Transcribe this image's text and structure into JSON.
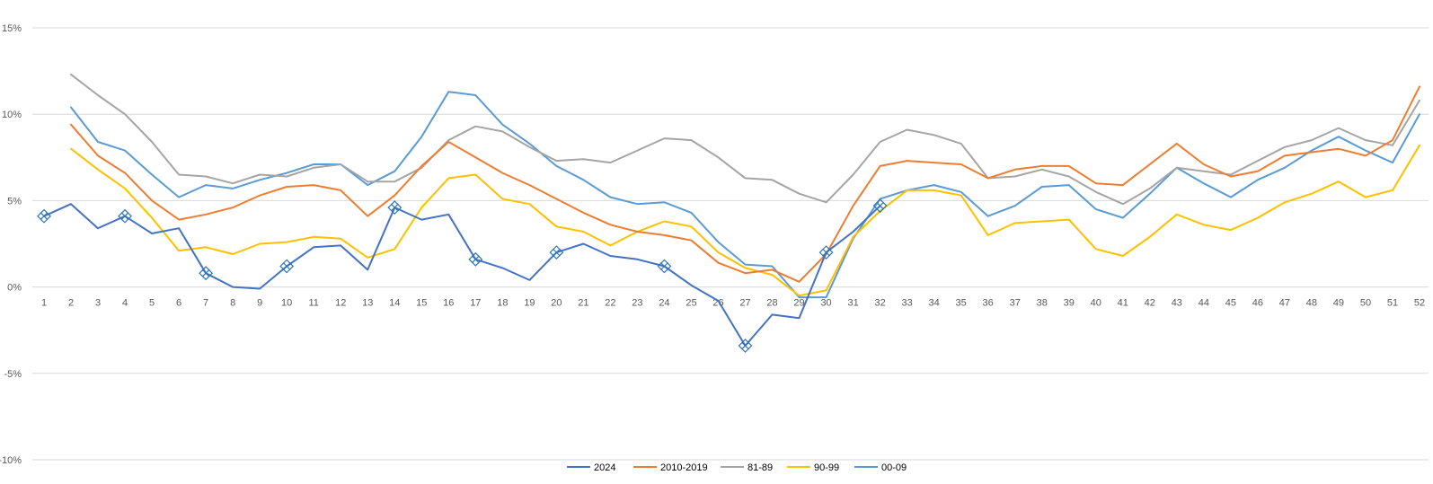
{
  "chart_data": {
    "type": "line",
    "title": "",
    "xlabel": "",
    "ylabel": "",
    "ylim": [
      -10,
      15
    ],
    "y_ticks": [
      -10,
      -5,
      0,
      5,
      10,
      15
    ],
    "y_tick_labels": [
      "-10%",
      "-5%",
      "0%",
      "5%",
      "10%",
      "15%"
    ],
    "grid": "horizontal",
    "legend_position": "bottom",
    "categories": [
      "1",
      "2",
      "3",
      "4",
      "5",
      "6",
      "7",
      "8",
      "9",
      "10",
      "11",
      "12",
      "13",
      "14",
      "15",
      "16",
      "17",
      "18",
      "19",
      "20",
      "21",
      "22",
      "23",
      "24",
      "25",
      "26",
      "27",
      "28",
      "29",
      "30",
      "31",
      "32",
      "33",
      "34",
      "35",
      "36",
      "37",
      "38",
      "39",
      "40",
      "41",
      "42",
      "43",
      "44",
      "45",
      "46",
      "47",
      "48",
      "49",
      "50",
      "51",
      "52"
    ],
    "series": [
      {
        "name": "2024",
        "color": "#4472C4",
        "values": [
          4.1,
          4.8,
          3.4,
          4.1,
          3.1,
          3.4,
          0.8,
          0.0,
          -0.1,
          1.2,
          2.3,
          2.4,
          1.0,
          4.6,
          3.9,
          4.2,
          1.6,
          1.1,
          0.4,
          2.0,
          2.5,
          1.8,
          1.6,
          1.2,
          0.1,
          -0.8,
          -3.4,
          -1.6,
          -1.8,
          2.0,
          3.2,
          4.7,
          null,
          null,
          null,
          null,
          null,
          null,
          null,
          null,
          null,
          null,
          null,
          null,
          null,
          null,
          null,
          null,
          null,
          null,
          null,
          null
        ],
        "highlighted_weeks": [
          "1",
          "4",
          "7",
          "10",
          "14",
          "17",
          "20",
          "24",
          "27",
          "30",
          "32"
        ]
      },
      {
        "name": "2010-2019",
        "color": "#ED7D31",
        "values": [
          null,
          9.4,
          7.6,
          6.6,
          5.0,
          3.9,
          4.2,
          4.6,
          5.3,
          5.8,
          5.9,
          5.6,
          4.1,
          5.3,
          7.0,
          8.4,
          7.5,
          6.6,
          5.9,
          5.1,
          4.3,
          3.6,
          3.2,
          3.0,
          2.7,
          1.4,
          0.8,
          1.0,
          0.3,
          1.9,
          4.7,
          7.0,
          7.3,
          7.2,
          7.1,
          6.3,
          6.8,
          7.0,
          7.0,
          6.0,
          5.9,
          7.1,
          8.3,
          7.1,
          6.4,
          6.7,
          7.6,
          7.8,
          8.0,
          7.6,
          8.5,
          11.6
        ]
      },
      {
        "name": "81-89",
        "color": "#A5A5A5",
        "values": [
          null,
          12.3,
          11.1,
          10.0,
          8.4,
          6.5,
          6.4,
          6.0,
          6.5,
          6.4,
          6.9,
          7.1,
          6.1,
          6.1,
          6.9,
          8.5,
          9.3,
          9.0,
          8.1,
          7.3,
          7.4,
          7.2,
          7.9,
          8.6,
          8.5,
          7.5,
          6.3,
          6.2,
          5.4,
          4.9,
          6.5,
          8.4,
          9.1,
          8.8,
          8.3,
          6.3,
          6.4,
          6.8,
          6.4,
          5.5,
          4.8,
          5.7,
          6.9,
          6.7,
          6.5,
          7.3,
          8.1,
          8.5,
          9.2,
          8.5,
          8.2,
          10.8
        ]
      },
      {
        "name": "90-99",
        "color": "#FFC000",
        "values": [
          null,
          8.0,
          6.8,
          5.7,
          4.0,
          2.1,
          2.3,
          1.9,
          2.5,
          2.6,
          2.9,
          2.8,
          1.7,
          2.2,
          4.6,
          6.3,
          6.5,
          5.1,
          4.8,
          3.5,
          3.2,
          2.4,
          3.2,
          3.8,
          3.5,
          2.0,
          1.1,
          0.7,
          -0.5,
          -0.2,
          2.9,
          4.4,
          5.6,
          5.6,
          5.3,
          3.0,
          3.7,
          3.8,
          3.9,
          2.2,
          1.8,
          2.9,
          4.2,
          3.6,
          3.3,
          4.0,
          4.9,
          5.4,
          6.1,
          5.2,
          5.6,
          8.2
        ]
      },
      {
        "name": "00-09",
        "color": "#5B9BD5",
        "values": [
          null,
          10.4,
          8.4,
          7.9,
          6.5,
          5.2,
          5.9,
          5.7,
          6.2,
          6.6,
          7.1,
          7.1,
          5.9,
          6.7,
          8.7,
          11.3,
          11.1,
          9.4,
          8.3,
          7.0,
          6.2,
          5.2,
          4.8,
          4.9,
          4.3,
          2.6,
          1.3,
          1.2,
          -0.6,
          -0.6,
          2.8,
          5.1,
          5.6,
          5.9,
          5.5,
          4.1,
          4.7,
          5.8,
          5.9,
          4.5,
          4.0,
          5.4,
          6.9,
          6.0,
          5.2,
          6.2,
          6.9,
          7.9,
          8.7,
          7.9,
          7.2,
          10.0
        ]
      }
    ]
  }
}
